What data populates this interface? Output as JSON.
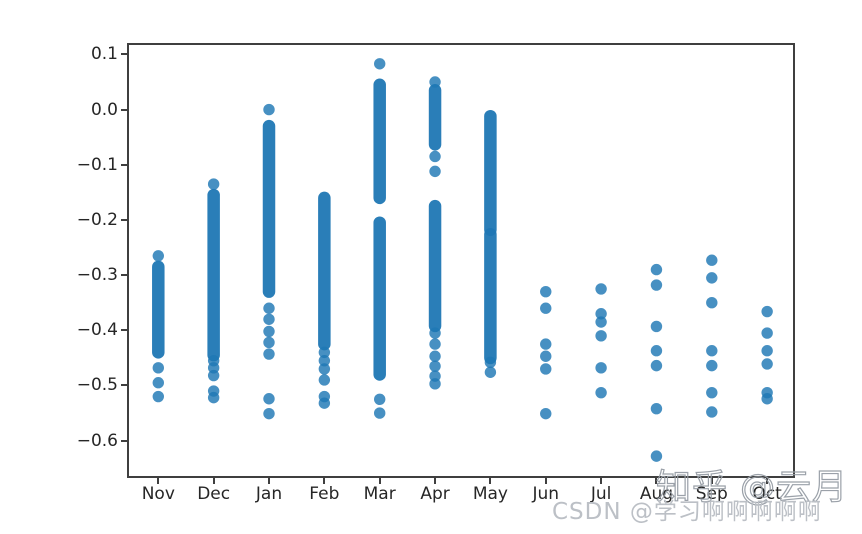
{
  "figure": {
    "background": "#ffffff",
    "axis_color": "#3f3f3f",
    "tick_label_color": "#262626"
  },
  "chart_data": {
    "type": "scatter",
    "title": "",
    "xlabel": "",
    "ylabel": "",
    "grid": false,
    "legend": null,
    "x_categories": [
      "Nov",
      "Dec",
      "Jan",
      "Feb",
      "Mar",
      "Apr",
      "May",
      "Jun",
      "Jul",
      "Aug",
      "Sep",
      "Oct"
    ],
    "y_tick_labels": [
      "0.1",
      "0.0",
      "−0.1",
      "−0.2",
      "−0.3",
      "−0.4",
      "−0.5",
      "−0.6"
    ],
    "y_tick_values": [
      0.1,
      0.0,
      -0.1,
      -0.2,
      -0.3,
      -0.4,
      -0.5,
      -0.6
    ],
    "ylim": [
      -0.664,
      0.117
    ],
    "marker_color": "#1f77b4",
    "marker_opacity": 0.82,
    "series": [
      {
        "month": "Nov",
        "dense": [
          [
            -0.285,
            -0.44
          ]
        ],
        "points": [
          -0.265,
          -0.468,
          -0.495,
          -0.52
        ]
      },
      {
        "month": "Dec",
        "dense": [
          [
            -0.155,
            -0.445
          ]
        ],
        "points": [
          -0.135,
          -0.455,
          -0.468,
          -0.482,
          -0.51,
          -0.522
        ]
      },
      {
        "month": "Jan",
        "dense": [
          [
            -0.03,
            -0.33
          ]
        ],
        "points": [
          0.0,
          -0.36,
          -0.38,
          -0.402,
          -0.422,
          -0.443,
          -0.524,
          -0.551
        ]
      },
      {
        "month": "Feb",
        "dense": [
          [
            -0.16,
            -0.425
          ]
        ],
        "points": [
          -0.44,
          -0.455,
          -0.47,
          -0.49,
          -0.52,
          -0.532
        ]
      },
      {
        "month": "Mar",
        "dense": [
          [
            0.045,
            -0.16
          ],
          [
            -0.205,
            -0.48
          ]
        ],
        "points": [
          0.083,
          -0.525,
          -0.55
        ]
      },
      {
        "month": "Apr",
        "dense": [
          [
            0.035,
            -0.063
          ],
          [
            -0.175,
            -0.392
          ]
        ],
        "points": [
          0.05,
          -0.085,
          -0.112,
          -0.405,
          -0.425,
          -0.447,
          -0.465,
          -0.483,
          -0.497
        ]
      },
      {
        "month": "May",
        "dense": [
          [
            -0.012,
            -0.218
          ],
          [
            -0.226,
            -0.45
          ]
        ],
        "points": [
          -0.458,
          -0.476
        ]
      },
      {
        "month": "Jun",
        "dense": [],
        "points": [
          -0.33,
          -0.36,
          -0.425,
          -0.447,
          -0.47,
          -0.551
        ]
      },
      {
        "month": "Jul",
        "dense": [],
        "points": [
          -0.325,
          -0.37,
          -0.385,
          -0.41,
          -0.468,
          -0.513
        ]
      },
      {
        "month": "Aug",
        "dense": [],
        "points": [
          -0.29,
          -0.318,
          -0.393,
          -0.437,
          -0.464,
          -0.542,
          -0.628
        ]
      },
      {
        "month": "Sep",
        "dense": [],
        "points": [
          -0.273,
          -0.305,
          -0.35,
          -0.437,
          -0.464,
          -0.513,
          -0.548
        ]
      },
      {
        "month": "Oct",
        "dense": [],
        "points": [
          -0.366,
          -0.405,
          -0.437,
          -0.461,
          -0.513,
          -0.524
        ]
      }
    ]
  },
  "watermarks": {
    "zhihu": "知乎 @云月",
    "csdn": "CSDN @学习啊啊啊啊啊"
  }
}
